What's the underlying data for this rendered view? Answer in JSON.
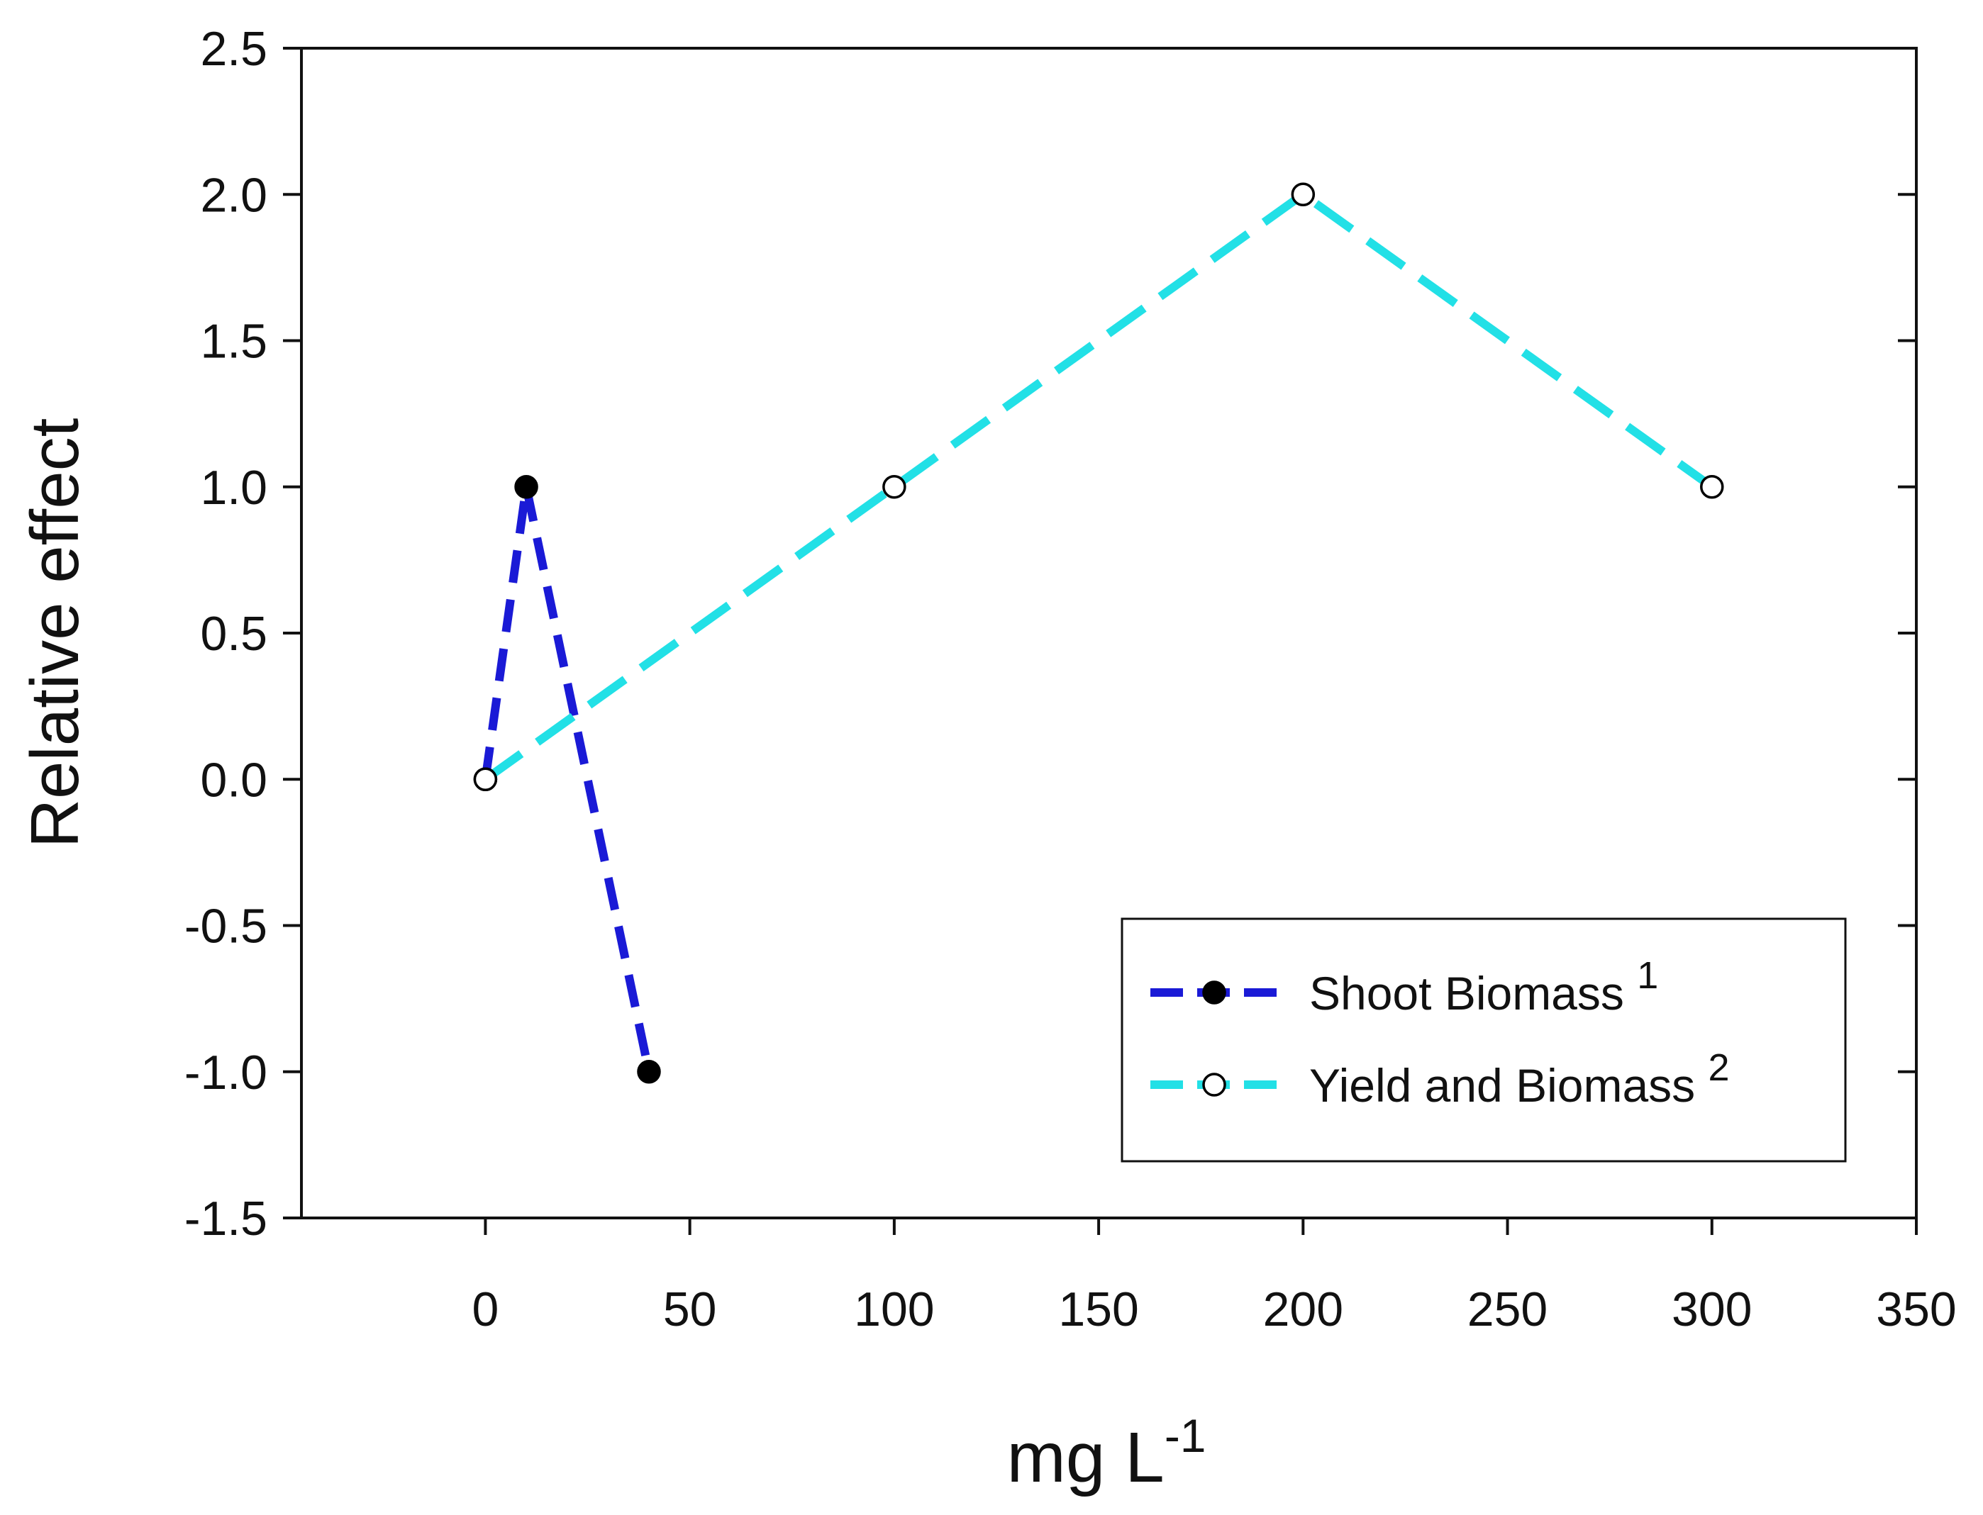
{
  "chart_data": {
    "type": "line",
    "title": "",
    "xlabel": {
      "base": "mg L",
      "superscript": "-1"
    },
    "ylabel": "Relative effect",
    "xlim": [
      -45,
      350
    ],
    "ylim": [
      -1.5,
      2.5
    ],
    "xticks": [
      0,
      50,
      100,
      150,
      200,
      250,
      300,
      350
    ],
    "yticks": [
      -1.5,
      -1.0,
      -0.5,
      0.0,
      0.5,
      1.0,
      1.5,
      2.0,
      2.5
    ],
    "ytick_labels": [
      "-1.5",
      "-1.0",
      "-0.5",
      "0.0",
      "0.5",
      "1.0",
      "1.5",
      "2.0",
      "2.5"
    ],
    "grid": false,
    "legend_position": "bottom-right",
    "series": [
      {
        "name": "Shoot Biomass",
        "superscript": "1",
        "color": "#1a1ad6",
        "marker": "filled-circle",
        "linestyle": "dashed",
        "x": [
          0,
          10,
          40
        ],
        "y": [
          0.0,
          1.0,
          -1.0
        ]
      },
      {
        "name": "Yield and Biomass",
        "superscript": "2",
        "color": "#22e0e6",
        "marker": "open-circle",
        "linestyle": "dashed",
        "x": [
          0,
          100,
          200,
          300
        ],
        "y": [
          0.0,
          1.0,
          2.0,
          1.0
        ]
      }
    ]
  }
}
